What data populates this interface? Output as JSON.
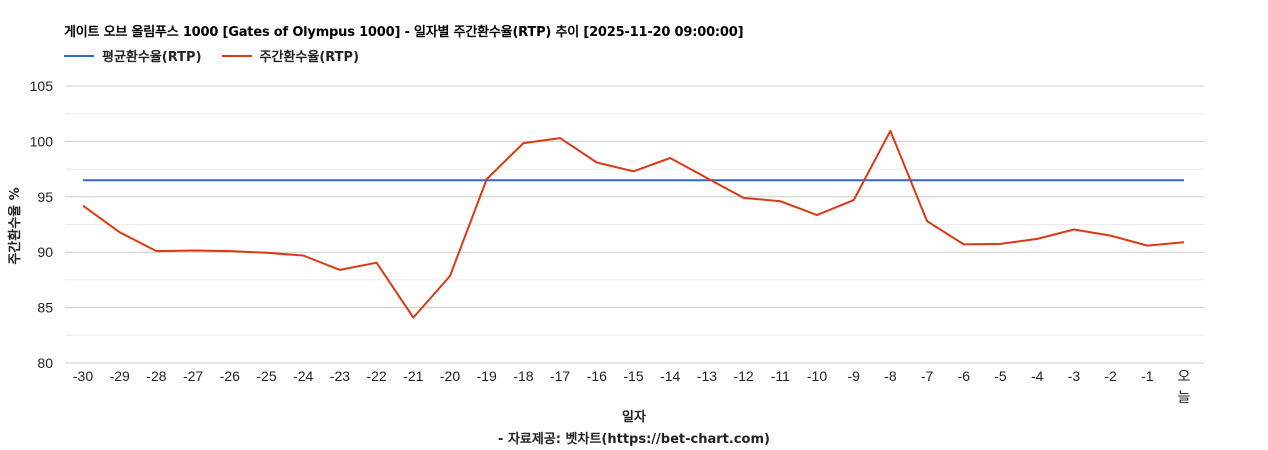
{
  "header": {
    "title": "게이트 오브 올림푸스 1000 [Gates of Olympus 1000] - 일자별 주간환수율(RTP) 추이 [2025-11-20 09:00:00]"
  },
  "legend": [
    {
      "label": "평균환수율(RTP)",
      "color": "#3366cc"
    },
    {
      "label": "주간환수율(RTP)",
      "color": "#dc3912"
    }
  ],
  "axes": {
    "ylabel": "주간환수율 %",
    "xlabel": "일자"
  },
  "footer": {
    "source": "- 자료제공: 벳차트(https://bet-chart.com)"
  },
  "chart_data": {
    "type": "line",
    "title": "게이트 오브 올림푸스 1000 [Gates of Olympus 1000] - 일자별 주간환수율(RTP) 추이 [2025-11-20 09:00:00]",
    "xlabel": "일자",
    "ylabel": "주간환수율 %",
    "ylim": [
      80,
      105
    ],
    "yticks": [
      80,
      85,
      90,
      95,
      100,
      105
    ],
    "minor_gridlines": [
      82.5,
      87.5,
      92.5,
      97.5,
      102.5
    ],
    "grid": true,
    "legend_position": "top",
    "categories": [
      "-30",
      "-29",
      "-28",
      "-27",
      "-26",
      "-25",
      "-24",
      "-23",
      "-22",
      "-21",
      "-20",
      "-19",
      "-18",
      "-17",
      "-16",
      "-15",
      "-14",
      "-13",
      "-12",
      "-11",
      "-10",
      "-9",
      "-8",
      "-7",
      "-6",
      "-5",
      "-4",
      "-3",
      "-2",
      "-1",
      "오늘"
    ],
    "series": [
      {
        "name": "평균환수율(RTP)",
        "color": "#3366cc",
        "values": [
          96.5,
          96.5,
          96.5,
          96.5,
          96.5,
          96.5,
          96.5,
          96.5,
          96.5,
          96.5,
          96.5,
          96.5,
          96.5,
          96.5,
          96.5,
          96.5,
          96.5,
          96.5,
          96.5,
          96.5,
          96.5,
          96.5,
          96.5,
          96.5,
          96.5,
          96.5,
          96.5,
          96.5,
          96.5,
          96.5,
          96.5
        ]
      },
      {
        "name": "주간환수율(RTP)",
        "color": "#dc3912",
        "values": [
          94.2,
          91.8,
          90.1,
          90.15,
          90.1,
          89.95,
          89.7,
          88.4,
          89.05,
          84.1,
          87.85,
          96.6,
          99.85,
          100.3,
          98.1,
          97.3,
          98.5,
          96.7,
          94.9,
          94.6,
          93.35,
          94.7,
          100.95,
          92.8,
          90.7,
          90.75,
          91.2,
          92.05,
          91.5,
          90.6,
          90.9
        ]
      }
    ]
  }
}
